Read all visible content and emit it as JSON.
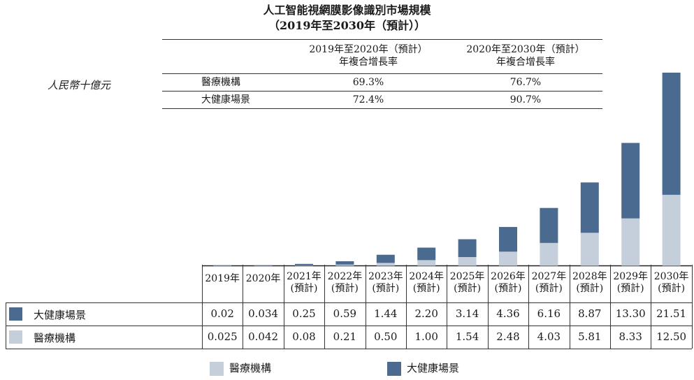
{
  "title": "人工智能視網膜影像識別市場規模",
  "subtitle": "（2019年至2030年（預計））",
  "unit_label": "人民幣十億元",
  "cagr_table": {
    "header_1": [
      "2019年至2020年（預計）",
      "年複合增長率"
    ],
    "header_2": [
      "2020年至2030年（預計）",
      "年複合增長率"
    ],
    "rows": [
      {
        "label": "醫療機構",
        "cagr_1": "69.3%",
        "cagr_2": "76.7%"
      },
      {
        "label": "大健康場景",
        "cagr_1": "72.4%",
        "cagr_2": "90.7%"
      }
    ]
  },
  "year_labels": [
    [
      "2019年"
    ],
    [
      "2020年"
    ],
    [
      "2021年",
      "(預計)"
    ],
    [
      "2022年",
      "(預計)"
    ],
    [
      "2023年",
      "(預計)"
    ],
    [
      "2024年",
      "(預計)"
    ],
    [
      "2025年",
      "(預計)"
    ],
    [
      "2026年",
      "(預計)"
    ],
    [
      "2027年",
      "(預計)"
    ],
    [
      "2028年",
      "(預計)"
    ],
    [
      "2029年",
      "(預計)"
    ],
    [
      "2030年",
      "(預計)"
    ]
  ],
  "rows": [
    {
      "label": "大健康場景",
      "values": [
        "0.02",
        "0.034",
        "0.25",
        "0.59",
        "1.44",
        "2.20",
        "3.14",
        "4.36",
        "6.16",
        "8.87",
        "13.30",
        "21.51"
      ]
    },
    {
      "label": "醫療機構",
      "values": [
        "0.025",
        "0.042",
        "0.08",
        "0.21",
        "0.50",
        "1.00",
        "1.54",
        "2.48",
        "4.03",
        "5.81",
        "8.33",
        "12.50"
      ]
    }
  ],
  "legend": [
    {
      "label": "醫療機構",
      "color": "#c5cfdc"
    },
    {
      "label": "大健康場景",
      "color": "#4b6a8f"
    }
  ],
  "chart_data": {
    "type": "bar",
    "stacked": true,
    "categories": [
      "2019年",
      "2020年",
      "2021年(預計)",
      "2022年(預計)",
      "2023年(預計)",
      "2024年(預計)",
      "2025年(預計)",
      "2026年(預計)",
      "2027年(預計)",
      "2028年(預計)",
      "2029年(預計)",
      "2030年(預計)"
    ],
    "series": [
      {
        "name": "醫療機構",
        "color": "#c5cfdc",
        "values": [
          0.025,
          0.042,
          0.08,
          0.21,
          0.5,
          1.0,
          1.54,
          2.48,
          4.03,
          5.81,
          8.33,
          12.5
        ]
      },
      {
        "name": "大健康場景",
        "color": "#4b6a8f",
        "values": [
          0.02,
          0.034,
          0.25,
          0.59,
          1.44,
          2.2,
          3.14,
          4.36,
          6.16,
          8.87,
          13.3,
          21.51
        ]
      }
    ],
    "title": "人工智能視網膜影像識別市場規模",
    "subtitle": "（2019年至2030年（預計））",
    "ylabel": "人民幣十億元",
    "ylim": [
      0,
      34.01
    ],
    "legend_position": "bottom"
  }
}
